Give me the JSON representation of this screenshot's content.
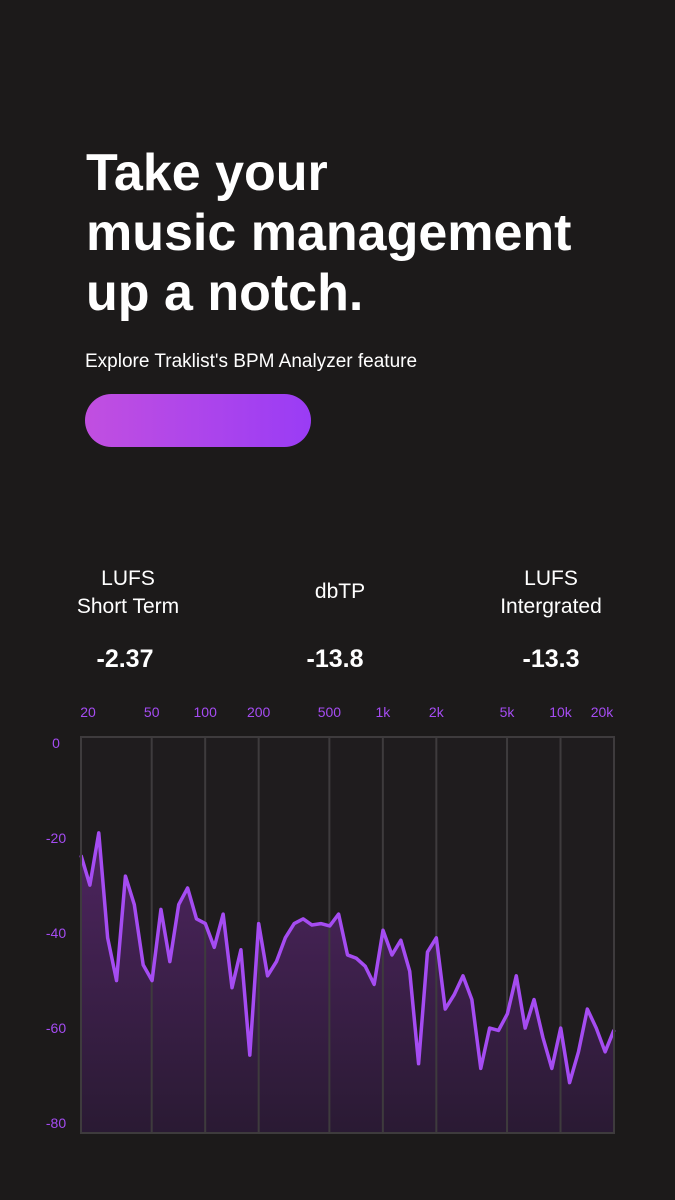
{
  "header": {
    "title": [
      "Take your",
      "music management",
      "up a notch."
    ],
    "subtitle": "Explore Traklist's BPM Analyzer feature"
  },
  "metrics": [
    {
      "label": [
        "LUFS",
        "Short Term"
      ],
      "value": "-2.37"
    },
    {
      "label": [
        "dbTP"
      ],
      "value": "-13.8"
    },
    {
      "label": [
        "LUFS",
        "Intergrated"
      ],
      "value": "-13.3"
    }
  ],
  "chart_data": {
    "type": "line",
    "color": "#a54cf2",
    "xscale": "log",
    "grid": true,
    "xlim": [
      20,
      20000
    ],
    "ylim": [
      -82.1,
      1.3
    ],
    "xticks": [
      20,
      50,
      100,
      200,
      500,
      {
        "value": 1000,
        "label": "1k"
      },
      {
        "value": 2000,
        "label": "2k"
      },
      {
        "value": 5000,
        "label": "5k"
      },
      {
        "value": 10000,
        "label": "10k"
      },
      {
        "value": 20000,
        "label": "20k"
      }
    ],
    "yticks": [
      0,
      -20,
      -40,
      -60,
      -80
    ],
    "x": [
      20,
      22.44,
      25.18,
      28.25,
      31.7,
      35.57,
      39.91,
      44.77,
      50.24,
      56.37,
      63.25,
      70.96,
      79.62,
      89.34,
      100.2,
      112.5,
      126.2,
      141.6,
      158.9,
      178.3,
      200,
      224.4,
      251.8,
      282.5,
      317.0,
      355.7,
      399.1,
      447.7,
      502.4,
      563.7,
      632.5,
      709.6,
      796.2,
      893.4,
      1002,
      1125,
      1262,
      1416,
      1589,
      1783,
      2000,
      2244,
      2518,
      2825,
      3170,
      3557,
      3991,
      4477,
      5024,
      5637,
      6325,
      7096,
      7962,
      8934,
      10024,
      11247,
      12619,
      14159,
      15887,
      17825,
      20000
    ],
    "values": [
      -23.6,
      -29.9,
      -18.9,
      -41,
      -50,
      -28,
      -34,
      -46.7,
      -50,
      -35,
      -46,
      -34,
      -30.5,
      -37,
      -38,
      -43,
      -36,
      -51.5,
      -43.5,
      -65.7,
      -38,
      -49,
      -46,
      -41,
      -38,
      -37,
      -38.3,
      -38,
      -38.5,
      -36,
      -44.6,
      -45.3,
      -47,
      -50.8,
      -39.4,
      -44.6,
      -41.5,
      -48,
      -67.5,
      -44,
      -41,
      -56,
      -53,
      -49,
      -54,
      -68.5,
      -60,
      -60.5,
      -57,
      -49,
      -60,
      -54,
      -62,
      -68.5,
      -60,
      -71.5,
      -65,
      -56,
      -60,
      -65,
      -60.4
    ]
  }
}
